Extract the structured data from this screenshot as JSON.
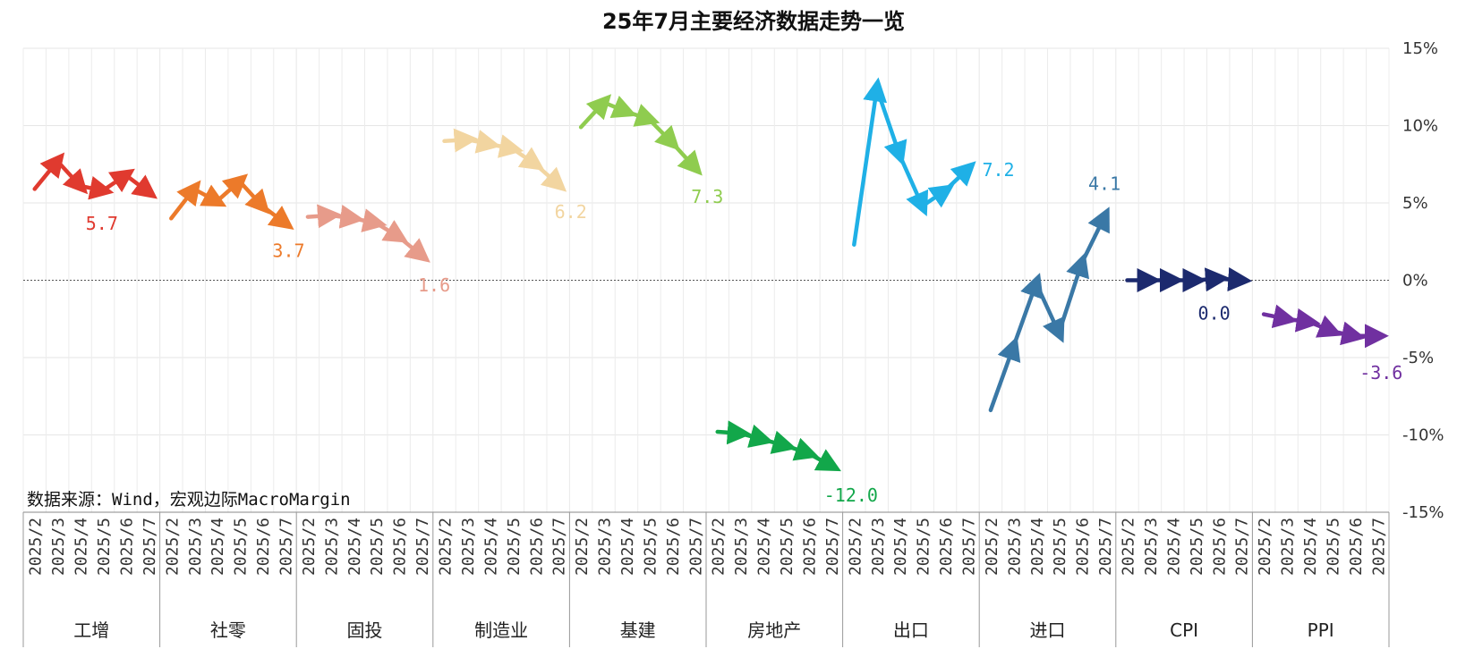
{
  "chart_data": {
    "type": "line",
    "title": "25年7月主要经济数据走势一览",
    "source": "数据来源：Wind，宏观边际MacroMargin",
    "ylim": [
      -15,
      15
    ],
    "yticks": [
      {
        "value": 15,
        "label": "15%"
      },
      {
        "value": 10,
        "label": "10%"
      },
      {
        "value": 5,
        "label": "5%"
      },
      {
        "value": 0,
        "label": "0%"
      },
      {
        "value": -5,
        "label": "-5%"
      },
      {
        "value": -10,
        "label": "-10%"
      },
      {
        "value": -15,
        "label": "-15%"
      }
    ],
    "months": [
      "2025/2",
      "2025/3",
      "2025/4",
      "2025/5",
      "2025/6",
      "2025/7"
    ],
    "grid": true,
    "series": [
      {
        "name": "工增",
        "color": "#e03a2f",
        "values": [
          5.9,
          7.7,
          6.1,
          5.8,
          6.8,
          5.7
        ],
        "last_label": "5.7"
      },
      {
        "name": "社零",
        "color": "#ec7a2a",
        "values": [
          4.0,
          5.9,
          5.1,
          6.4,
          4.8,
          3.7
        ],
        "last_label": "3.7"
      },
      {
        "name": "固投",
        "color": "#e79b8a",
        "values": [
          4.1,
          4.2,
          4.0,
          3.7,
          2.8,
          1.6
        ],
        "last_label": "1.6"
      },
      {
        "name": "制造业",
        "color": "#f2d5a0",
        "values": [
          9.0,
          9.1,
          8.8,
          8.5,
          7.5,
          6.2
        ],
        "last_label": "6.2"
      },
      {
        "name": "基建",
        "color": "#8fcc4f",
        "values": [
          9.9,
          11.5,
          10.9,
          10.4,
          8.9,
          7.3
        ],
        "last_label": "7.3"
      },
      {
        "name": "房地产",
        "color": "#12a74a",
        "values": [
          -9.8,
          -9.9,
          -10.3,
          -10.7,
          -11.2,
          -12.0
        ],
        "last_label": "-12.0"
      },
      {
        "name": "出口",
        "color": "#1fb0e6",
        "values": [
          2.3,
          12.4,
          8.1,
          4.8,
          5.8,
          7.2
        ],
        "last_label": "7.2"
      },
      {
        "name": "进口",
        "color": "#3a78a6",
        "values": [
          -8.4,
          -4.3,
          -0.2,
          -3.4,
          1.1,
          4.1
        ],
        "last_label": "4.1"
      },
      {
        "name": "CPI",
        "color": "#1c2a6e",
        "values": [
          0.0,
          0.0,
          0.0,
          0.0,
          0.1,
          0.0
        ],
        "last_label": "0.0"
      },
      {
        "name": "PPI",
        "color": "#7030a0",
        "values": [
          -2.2,
          -2.5,
          -2.7,
          -3.3,
          -3.6,
          -3.6
        ],
        "last_label": "-3.6"
      }
    ]
  }
}
